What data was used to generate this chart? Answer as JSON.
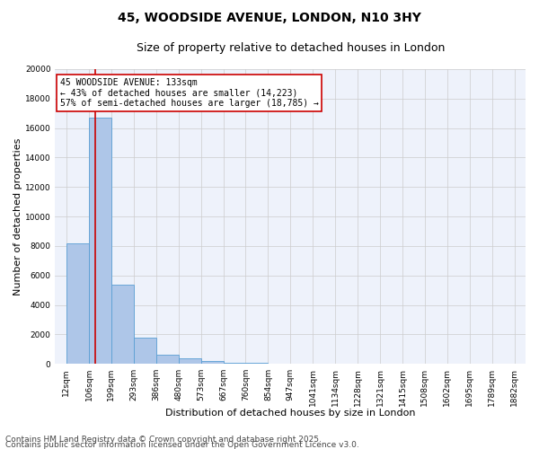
{
  "title_line1": "45, WOODSIDE AVENUE, LONDON, N10 3HY",
  "title_line2": "Size of property relative to detached houses in London",
  "xlabel": "Distribution of detached houses by size in London",
  "ylabel": "Number of detached properties",
  "bar_values": [
    8200,
    16700,
    5400,
    1800,
    600,
    350,
    200,
    100,
    60,
    30,
    20,
    10,
    10,
    5,
    5,
    3,
    2,
    2,
    1,
    1
  ],
  "bin_edges": [
    12,
    106,
    199,
    293,
    386,
    480,
    573,
    667,
    760,
    854,
    947,
    1041,
    1134,
    1228,
    1321,
    1415,
    1508,
    1602,
    1695,
    1789,
    1882
  ],
  "tick_labels": [
    "12sqm",
    "106sqm",
    "199sqm",
    "293sqm",
    "386sqm",
    "480sqm",
    "573sqm",
    "667sqm",
    "760sqm",
    "854sqm",
    "947sqm",
    "1041sqm",
    "1134sqm",
    "1228sqm",
    "1321sqm",
    "1415sqm",
    "1508sqm",
    "1602sqm",
    "1695sqm",
    "1789sqm",
    "1882sqm"
  ],
  "bar_color": "#aec6e8",
  "bar_edge_color": "#5a9fd4",
  "red_line_x": 133,
  "annotation_title": "45 WOODSIDE AVENUE: 133sqm",
  "annotation_line2": "← 43% of detached houses are smaller (14,223)",
  "annotation_line3": "57% of semi-detached houses are larger (18,785) →",
  "annotation_box_color": "#ffffff",
  "annotation_box_edge": "#cc0000",
  "red_line_color": "#cc0000",
  "ylim": [
    0,
    20000
  ],
  "yticks": [
    0,
    2000,
    4000,
    6000,
    8000,
    10000,
    12000,
    14000,
    16000,
    18000,
    20000
  ],
  "grid_color": "#cccccc",
  "background_color": "#eef2fb",
  "footer_line1": "Contains HM Land Registry data © Crown copyright and database right 2025.",
  "footer_line2": "Contains public sector information licensed under the Open Government Licence v3.0.",
  "title_fontsize": 10,
  "subtitle_fontsize": 9,
  "axis_label_fontsize": 8,
  "tick_fontsize": 6.5,
  "annotation_fontsize": 7,
  "footer_fontsize": 6.5
}
